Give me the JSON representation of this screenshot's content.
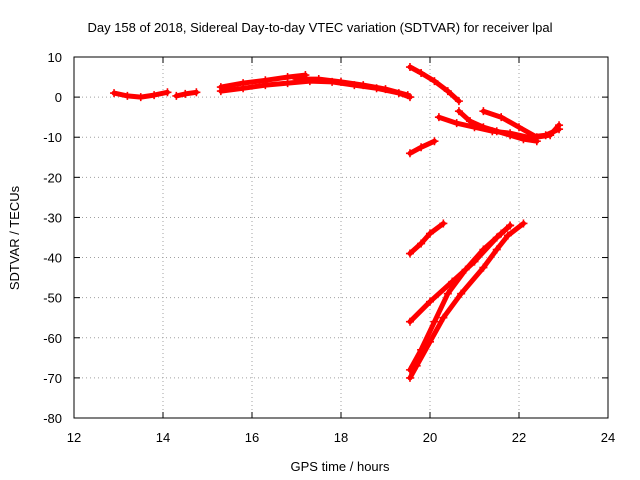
{
  "chart_data": {
    "type": "scatter",
    "title": "Day 158 of 2018, Sidereal Day-to-day VTEC variation (SDTVAR) for receiver lpal",
    "xlabel": "GPS time / hours",
    "ylabel": "SDTVAR / TECUs",
    "xlim": [
      12,
      24
    ],
    "ylim": [
      -80,
      10
    ],
    "xticks": [
      12,
      14,
      16,
      18,
      20,
      22,
      24
    ],
    "yticks": [
      10,
      0,
      -10,
      -20,
      -30,
      -40,
      -50,
      -60,
      -70,
      -80
    ],
    "grid": true,
    "series_color": "#ff0000",
    "series": [
      {
        "x": [
          12.9,
          13.2,
          13.5,
          13.8,
          14.1
        ],
        "y": [
          1,
          0.3,
          0,
          0.5,
          1.2
        ]
      },
      {
        "x": [
          14.3,
          14.5,
          14.75
        ],
        "y": [
          0.3,
          0.8,
          1.2
        ]
      },
      {
        "x": [
          15.3,
          15.8,
          16.3,
          16.8,
          17.2
        ],
        "y": [
          2.5,
          3.5,
          4.2,
          5,
          5.5
        ]
      },
      {
        "x": [
          15.3,
          15.8,
          16.3,
          16.8,
          17.3,
          17.8,
          18.3,
          18.8,
          19.3,
          19.55
        ],
        "y": [
          1.5,
          2.2,
          3,
          3.5,
          4,
          3.8,
          3,
          2.2,
          1,
          0
        ]
      },
      {
        "x": [
          17.0,
          17.5,
          18.0,
          18.5,
          19.0,
          19.5
        ],
        "y": [
          4.5,
          4.5,
          3.8,
          3,
          2,
          0.5
        ]
      },
      {
        "x": [
          19.55,
          19.8,
          20.1,
          20.4,
          20.65
        ],
        "y": [
          7.5,
          6,
          4,
          1.5,
          -1
        ]
      },
      {
        "x": [
          19.55,
          19.8,
          20.1
        ],
        "y": [
          -14,
          -12.5,
          -11
        ]
      },
      {
        "x": [
          20.65,
          20.9,
          21.2,
          21.5,
          21.8,
          22.1,
          22.4
        ],
        "y": [
          -3.5,
          -6,
          -7.5,
          -8.5,
          -9.5,
          -10.5,
          -11
        ]
      },
      {
        "x": [
          20.2,
          20.6,
          21.0,
          21.4,
          21.8,
          22.2,
          22.6,
          22.9
        ],
        "y": [
          -5,
          -6.5,
          -7.5,
          -8.5,
          -9,
          -10,
          -9.5,
          -8
        ]
      },
      {
        "x": [
          21.2,
          21.6,
          22.0,
          22.4,
          22.7,
          22.9
        ],
        "y": [
          -3.5,
          -5,
          -7.5,
          -10,
          -9.5,
          -7
        ]
      },
      {
        "x": [
          19.55,
          19.8,
          20.0,
          20.3
        ],
        "y": [
          -39,
          -36.5,
          -34,
          -31.5
        ]
      },
      {
        "x": [
          19.55,
          20.0,
          20.5,
          21.0,
          21.5,
          21.8
        ],
        "y": [
          -56,
          -51,
          -46,
          -41,
          -35,
          -32
        ]
      },
      {
        "x": [
          19.55,
          19.7,
          20.0,
          20.3,
          20.7,
          21.2,
          21.5,
          21.75,
          22.1
        ],
        "y": [
          -70,
          -67,
          -61,
          -55,
          -49,
          -42.5,
          -38,
          -34.5,
          -31.5
        ]
      },
      {
        "x": [
          19.55,
          19.8,
          20.1,
          20.4,
          20.8,
          21.2,
          21.6,
          21.8
        ],
        "y": [
          -68,
          -63,
          -56,
          -49,
          -43,
          -38,
          -34,
          -32
        ]
      }
    ]
  }
}
